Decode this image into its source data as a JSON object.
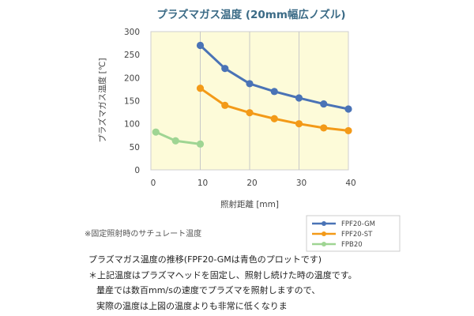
{
  "chart_data": {
    "type": "line",
    "title": "プラズマガス温度 (20mm幅広ノズル)",
    "xlabel": "照射距離 [mm]",
    "ylabel": "プラズマガス温度 [℃]",
    "xlim": [
      0,
      40
    ],
    "ylim": [
      0,
      300
    ],
    "xticks": [
      0,
      10,
      20,
      30,
      40
    ],
    "yticks": [
      0,
      50,
      100,
      150,
      200,
      250,
      300
    ],
    "grid": "vertical",
    "legend_position": "bottom-right",
    "background_color": "#fdfbd9",
    "series": [
      {
        "name": "FPF20-GM",
        "color": "#4a73b6",
        "x": [
          10,
          15,
          20,
          25,
          30,
          35,
          40
        ],
        "y": [
          270,
          220,
          187,
          170,
          156,
          143,
          132
        ]
      },
      {
        "name": "FPF20-ST",
        "color": "#f39a18",
        "x": [
          10,
          15,
          20,
          25,
          30,
          35,
          40
        ],
        "y": [
          177,
          140,
          124,
          111,
          100,
          91,
          85
        ]
      },
      {
        "name": "FPB20",
        "color": "#9fd593",
        "x": [
          1,
          5,
          10
        ],
        "y": [
          82,
          63,
          56
        ]
      }
    ],
    "annotation": "※固定照射時のサチュレート温度"
  },
  "caption": {
    "line1": "プラズマガス温度の推移(FPF20-GMは青色のプロットです)",
    "line2": "＊上記温度はプラズマヘッドを固定し、照射し続けた時の温度です。",
    "line3": "量産では数百mm/sの速度でプラズマを照射しますので、",
    "line4": "実際の温度は上図の温度よりも非常に低くなりま"
  }
}
